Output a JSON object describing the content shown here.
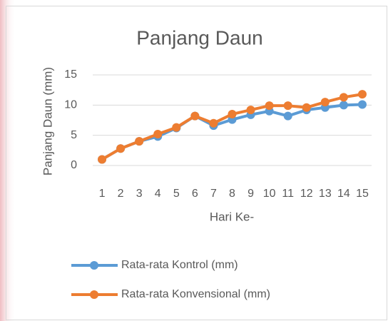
{
  "chart_data": {
    "type": "line",
    "title": "Panjang Daun",
    "x_label": "Hari Ke-",
    "y_label": "Panjang Daun (mm)",
    "categories": [
      "1",
      "2",
      "3",
      "4",
      "5",
      "6",
      "7",
      "8",
      "9",
      "10",
      "11",
      "12",
      "13",
      "14",
      "15"
    ],
    "series": [
      {
        "name": "Rata-rata Kontrol (mm)",
        "color": "#5b9bd5",
        "values": [
          1,
          2.8,
          4,
          4.8,
          6.2,
          8.2,
          6.6,
          7.6,
          8.4,
          9,
          8.2,
          9.2,
          9.6,
          10,
          10.1
        ]
      },
      {
        "name": "Rata-rata Konvensional (mm)",
        "color": "#ed7d31",
        "values": [
          1,
          2.8,
          4,
          5.2,
          6.3,
          8.2,
          7,
          8.5,
          9.2,
          9.9,
          9.9,
          9.6,
          10.5,
          11.3,
          11.8
        ]
      }
    ],
    "ylim": [
      0,
      15
    ],
    "yticks": [
      0,
      5,
      10,
      15
    ],
    "grid": true,
    "legend": "bottom"
  }
}
